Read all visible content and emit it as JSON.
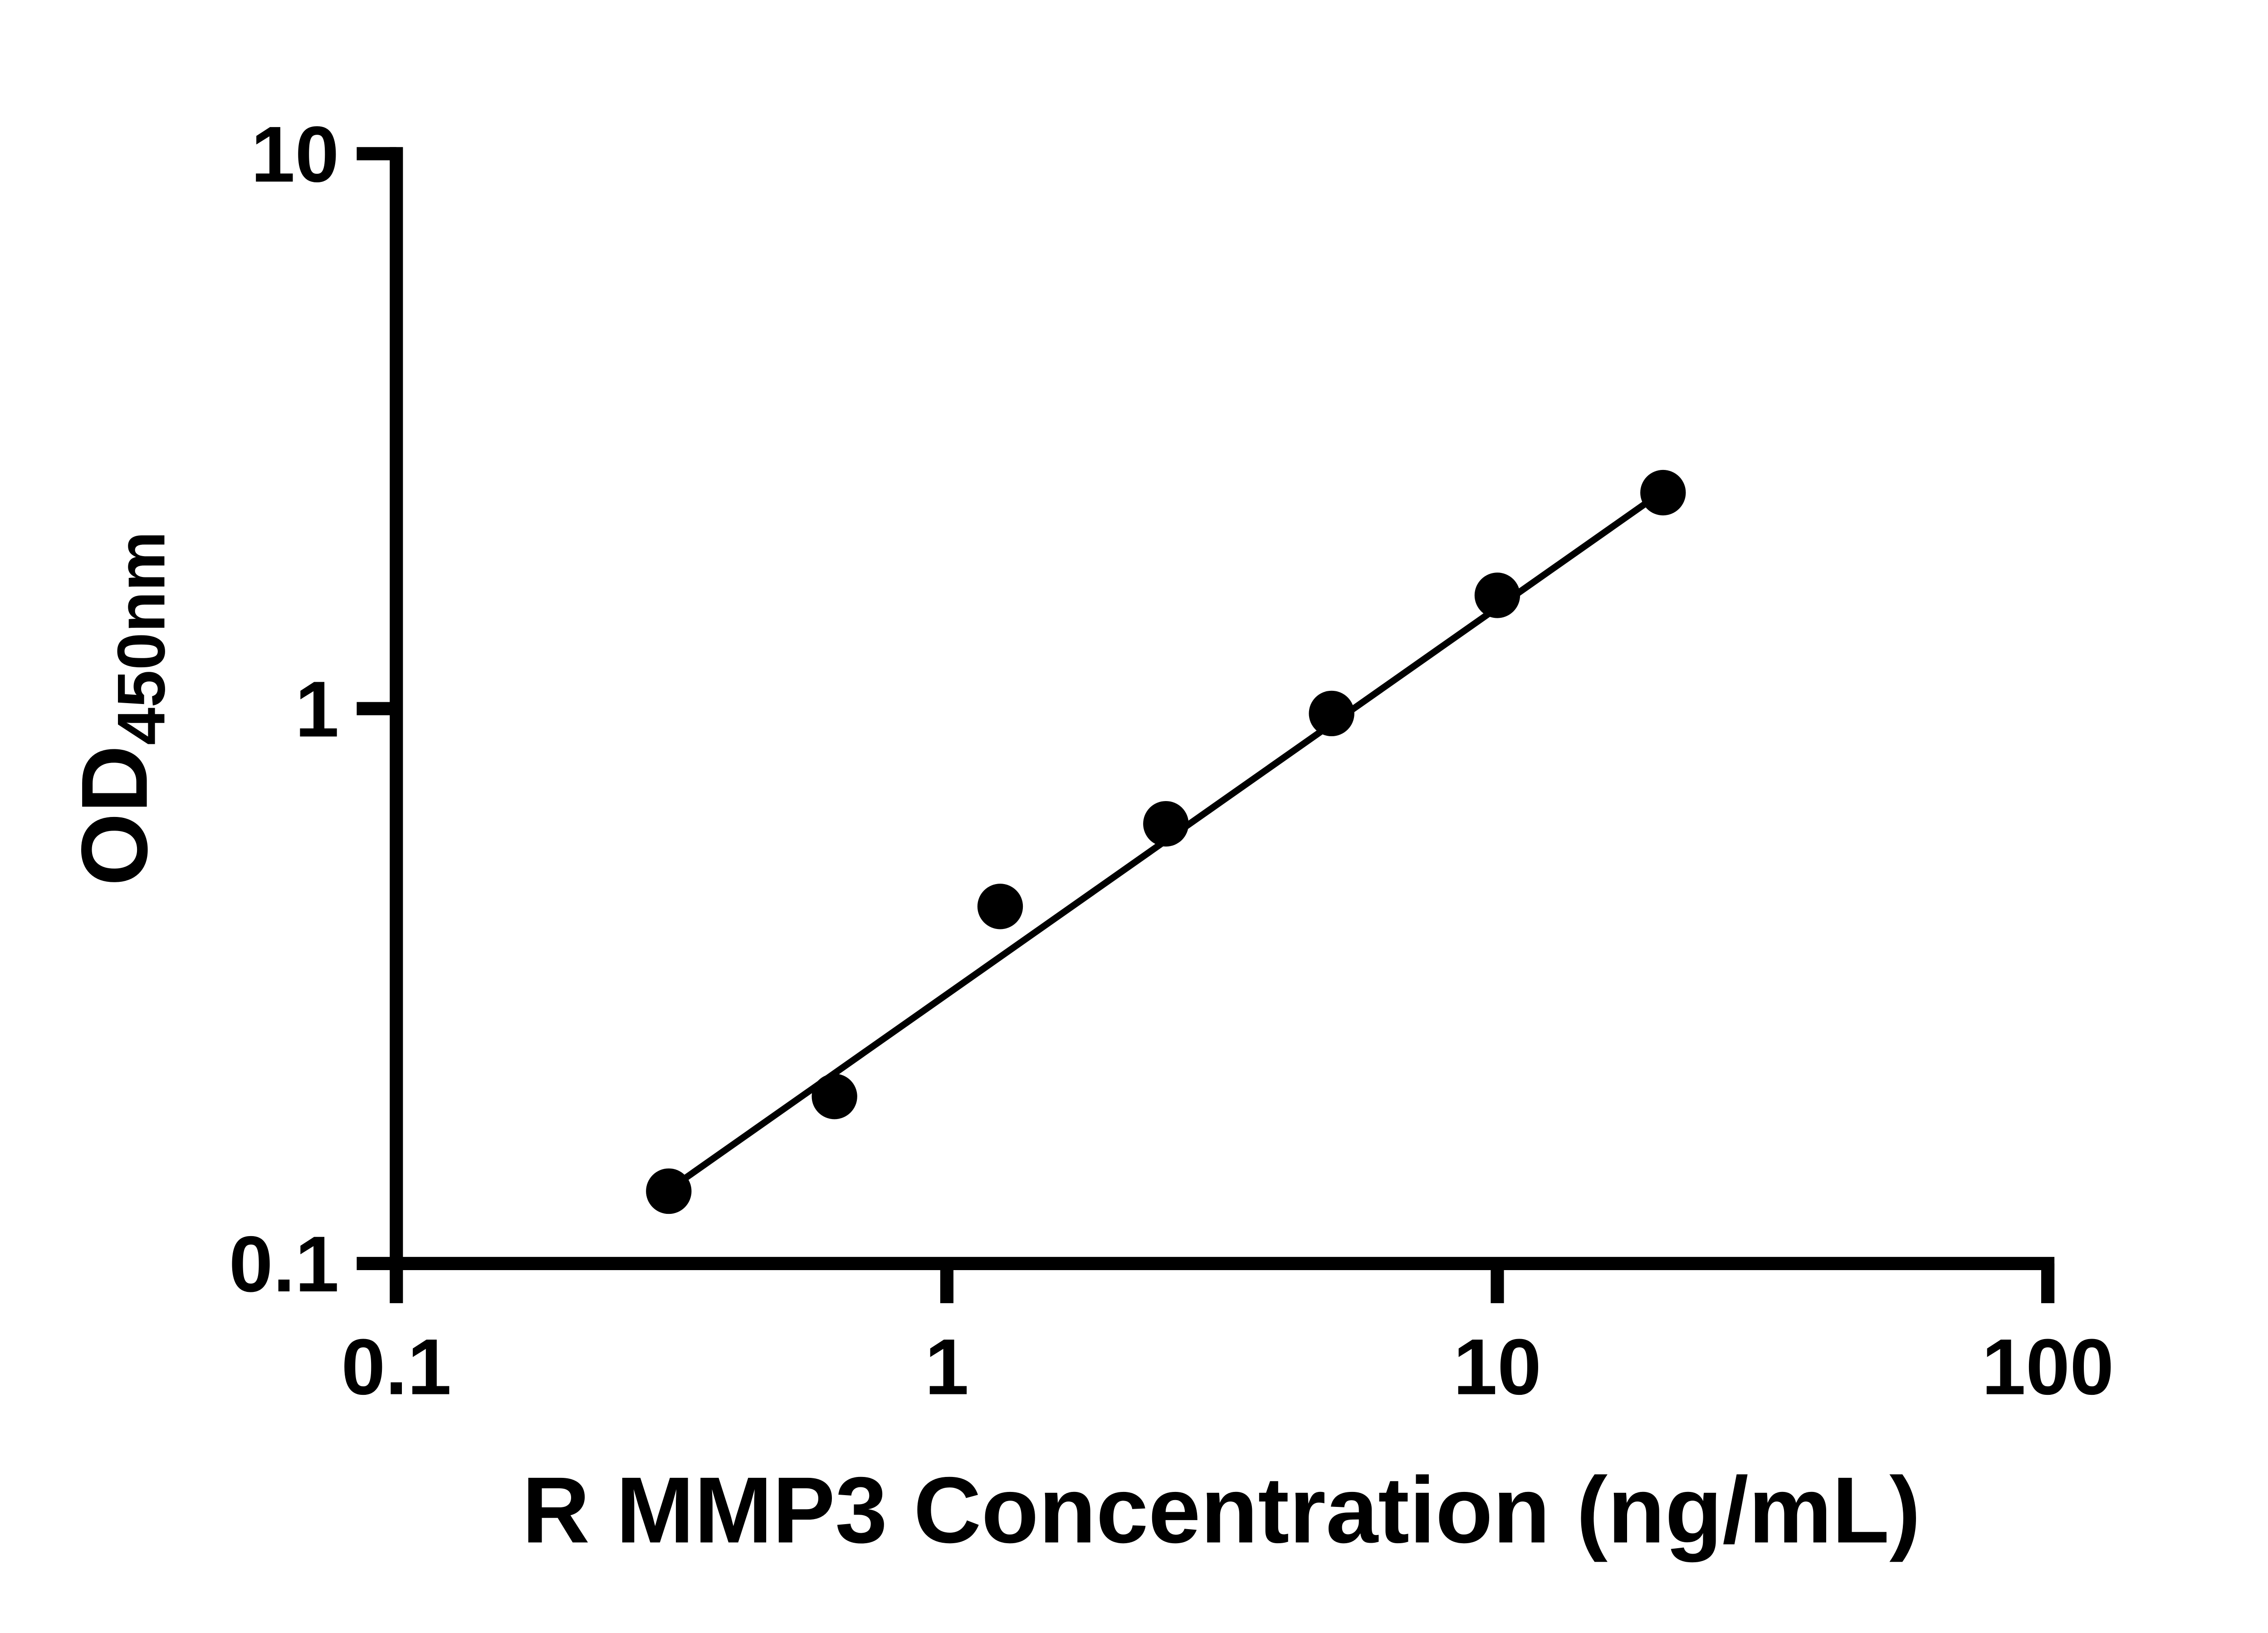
{
  "chart_data": {
    "type": "scatter",
    "title": "",
    "xlabel": "R MMP3 Concentration (ng/mL)",
    "ylabel_main": "OD",
    "ylabel_sub": "450nm",
    "x_scale": "log",
    "y_scale": "log",
    "xlim": [
      0.1,
      100
    ],
    "ylim": [
      0.1,
      10
    ],
    "x_ticks": [
      0.1,
      1,
      10,
      100
    ],
    "x_tick_labels": [
      "0.1",
      "1",
      "10",
      "100"
    ],
    "y_ticks": [
      0.1,
      1,
      10
    ],
    "y_tick_labels": [
      "0.1",
      "1",
      "10"
    ],
    "points": [
      {
        "x": 0.3125,
        "y": 0.135
      },
      {
        "x": 0.625,
        "y": 0.2
      },
      {
        "x": 1.25,
        "y": 0.44
      },
      {
        "x": 2.5,
        "y": 0.62
      },
      {
        "x": 5,
        "y": 0.98
      },
      {
        "x": 10,
        "y": 1.6
      },
      {
        "x": 20,
        "y": 2.45
      }
    ],
    "trendline": {
      "x1": 0.3,
      "y1": 0.132,
      "x2": 21,
      "y2": 2.55
    },
    "marker_color": "#000000",
    "line_color": "#000000",
    "grid": false,
    "legend": null
  }
}
